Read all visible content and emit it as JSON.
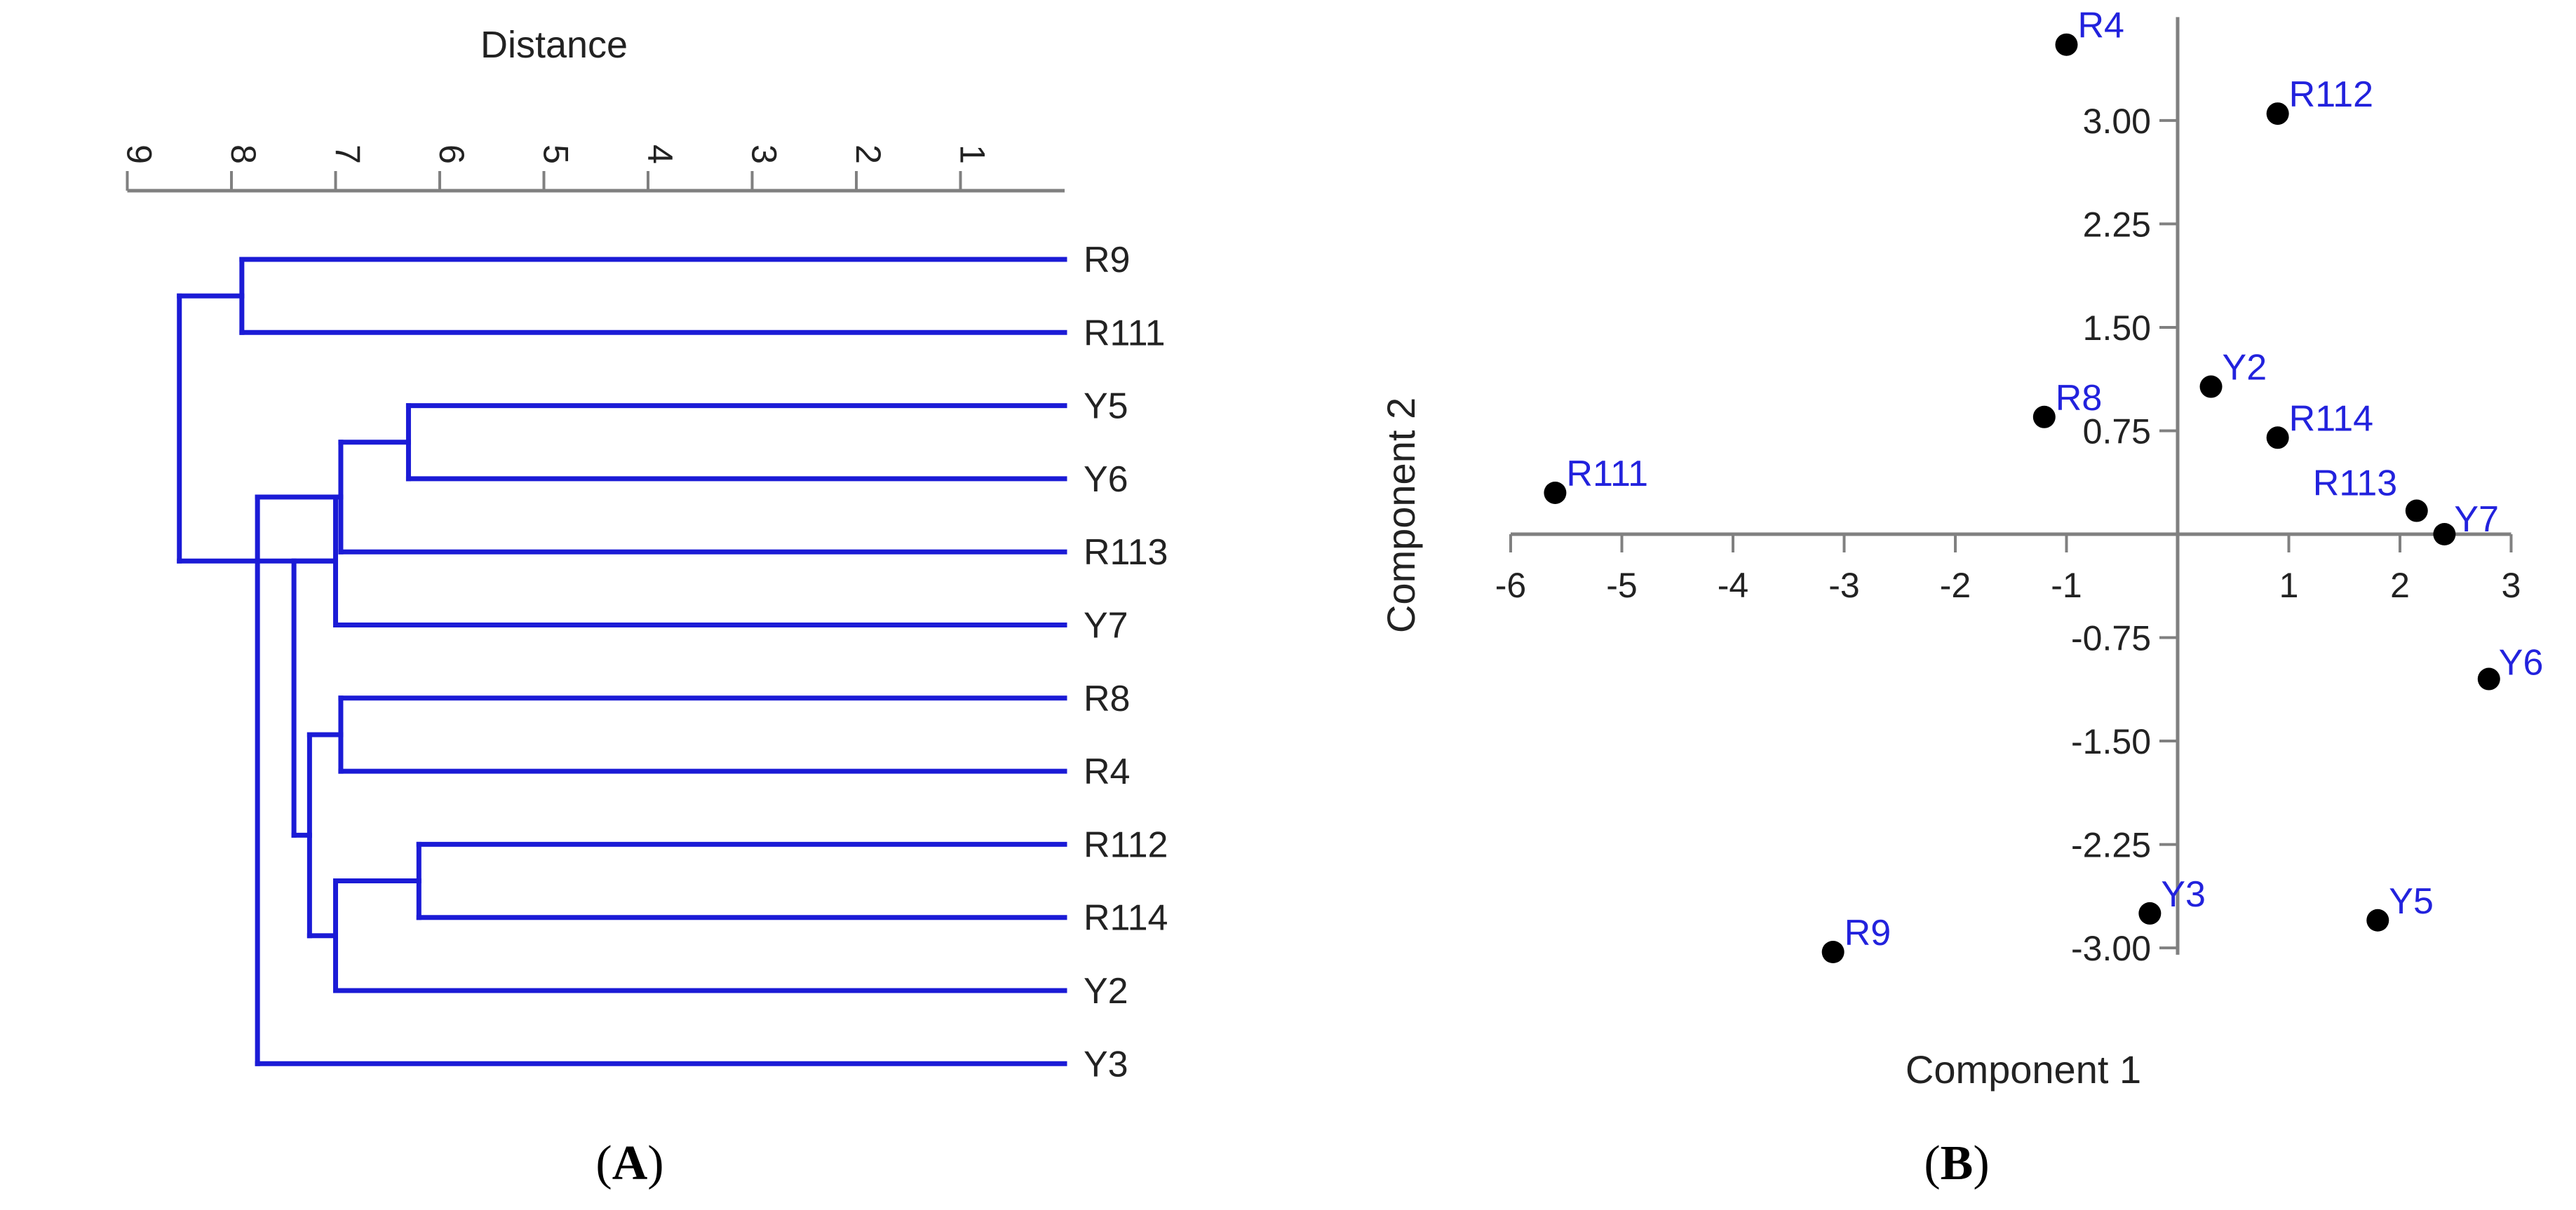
{
  "chart_data": [
    {
      "type": "dendrogram",
      "panel_label": "A",
      "xlabel": "Distance",
      "axis_ticks": [
        9,
        8,
        7,
        6,
        5,
        4,
        3,
        2,
        1
      ],
      "xlim": [
        9,
        0
      ],
      "leaves": [
        "R9",
        "R111",
        "Y5",
        "Y6",
        "R113",
        "Y7",
        "R8",
        "R4",
        "R112",
        "R114",
        "Y2",
        "Y3"
      ],
      "merges": [
        {
          "children": [
            "R9",
            "R111"
          ],
          "height": 7.9
        },
        {
          "children": [
            "Y5",
            "Y6"
          ],
          "height": 6.3
        },
        {
          "children": [
            "Y5-Y6",
            "R113"
          ],
          "height": 6.95
        },
        {
          "children": [
            "Y5-Y6-R113",
            "Y7"
          ],
          "height": 7.0
        },
        {
          "children": [
            "R8",
            "R4"
          ],
          "height": 6.95
        },
        {
          "children": [
            "R112",
            "R114"
          ],
          "height": 6.2
        },
        {
          "children": [
            "R112-R114",
            "Y2"
          ],
          "height": 7.0
        },
        {
          "children": [
            "R8-R4",
            "R112-R114-Y2"
          ],
          "height": 7.25
        },
        {
          "children": [
            "Y5-Y6-R113-Y7",
            "R8-R4-R112-R114-Y2"
          ],
          "height": 7.4
        },
        {
          "children": [
            "cluster-2",
            "Y3"
          ],
          "height": 7.75
        },
        {
          "children": [
            "R9-R111",
            "cluster-3"
          ],
          "height": 8.5
        }
      ]
    },
    {
      "type": "scatter",
      "panel_label": "B",
      "xlabel": "Component 1",
      "ylabel": "Component 2",
      "x_ticks": [
        -6,
        -5,
        -4,
        -3,
        -2,
        -1,
        1,
        2,
        3
      ],
      "y_ticks": [
        "3.00",
        "2.25",
        "1.50",
        "0.75",
        "-0.75",
        "-1.50",
        "-2.25",
        "-3.00"
      ],
      "y_tick_values": [
        3.0,
        2.25,
        1.5,
        0.75,
        -0.75,
        -1.5,
        -2.25,
        -3.0
      ],
      "xlim": [
        -6,
        3
      ],
      "ylim": [
        -3,
        3.5
      ],
      "points": [
        {
          "label": "R4",
          "x": -1.0,
          "y": 3.55
        },
        {
          "label": "R112",
          "x": 0.9,
          "y": 3.05
        },
        {
          "label": "Y2",
          "x": 0.3,
          "y": 1.07
        },
        {
          "label": "R8",
          "x": -1.2,
          "y": 0.85
        },
        {
          "label": "R114",
          "x": 0.9,
          "y": 0.7
        },
        {
          "label": "R111",
          "x": -5.6,
          "y": 0.3
        },
        {
          "label": "R113",
          "x": 2.15,
          "y": 0.17
        },
        {
          "label": "Y7",
          "x": 2.4,
          "y": 0.0
        },
        {
          "label": "Y6",
          "x": 2.8,
          "y": -1.05
        },
        {
          "label": "Y3",
          "x": -0.25,
          "y": -2.75
        },
        {
          "label": "Y5",
          "x": 1.8,
          "y": -2.8
        },
        {
          "label": "R9",
          "x": -3.1,
          "y": -3.03
        }
      ],
      "colors": {
        "marker": "#000000",
        "label": "#2222dd"
      }
    }
  ],
  "colors": {
    "dendrogram_line": "#1b1bd6",
    "axis": "#808080"
  }
}
